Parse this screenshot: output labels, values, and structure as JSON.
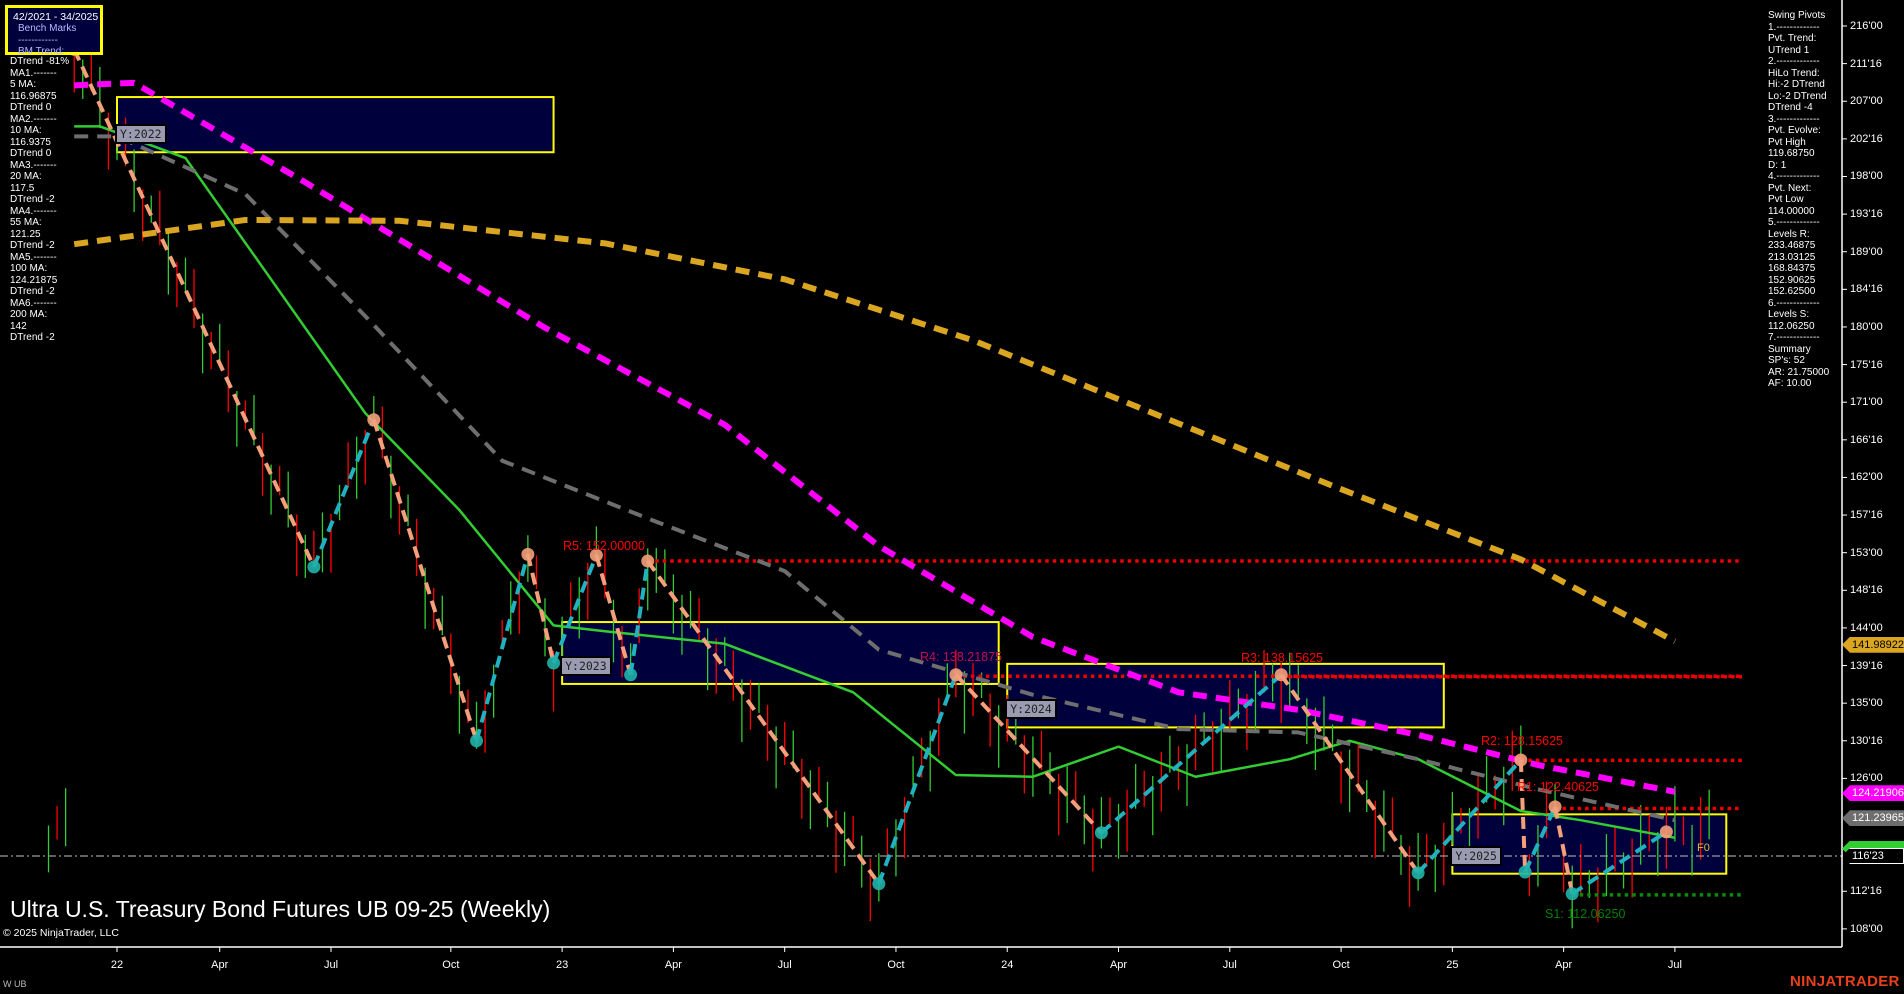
{
  "window": {
    "title": "Ultra U.S. Treasury Bond Futures UB 09-25 (Weekly)",
    "copyright": "© 2025 NinjaTrader, LLC",
    "instrument_tag": "W UB",
    "logo": "NINJATRADER"
  },
  "bench_box": {
    "range": "42/2021 - 34/2025",
    "lines": [
      "Bench Marks",
      "------------",
      "BM Trend:"
    ]
  },
  "left_panel": [
    "DTrend -81%",
    "MA1.-------",
    "5 MA:",
    "116.96875",
    "DTrend 0",
    "MA2.-------",
    "10 MA:",
    "116.9375",
    "DTrend 0",
    "MA3.-------",
    "20 MA:",
    "117.5",
    "DTrend -2",
    "MA4.-------",
    "55 MA:",
    "121.25",
    "DTrend -2",
    "MA5.-------",
    "100 MA:",
    "124.21875",
    "DTrend -2",
    "MA6.-------",
    "200 MA:",
    "142",
    "DTrend -2"
  ],
  "right_panel": [
    "Swing Pivots",
    "1.-------------",
    "Pvt. Trend:",
    "UTrend 1",
    "2.-------------",
    "HiLo Trend:",
    "Hi:-2 DTrend",
    "Lo:-2 DTrend",
    "DTrend -4",
    "3.-------------",
    "Pvt. Evolve:",
    "Pvt High",
    "119.68750",
    "D: 1",
    "4.-------------",
    "Pvt. Next:",
    "Pvt Low",
    "114.00000",
    "5.-------------",
    "Levels R:",
    "233.46875",
    "213.03125",
    "168.84375",
    "152.90625",
    "152.62500",
    "6.-------------",
    "Levels S:",
    "112.06250",
    "7.-------------",
    "Summary",
    "SP's: 52",
    "AR: 21.75000",
    "AF: 10.00"
  ],
  "chart_data": {
    "type": "line",
    "title": "Ultra U.S. Treasury Bond Futures UB 09-25 (Weekly)",
    "x_axis": {
      "start": "42/2021",
      "end": "34/2025",
      "ticks": [
        {
          "label": "22",
          "week": 11
        },
        {
          "label": "Apr",
          "week": 23
        },
        {
          "label": "Jul",
          "week": 36
        },
        {
          "label": "Oct",
          "week": 50
        },
        {
          "label": "23",
          "week": 63
        },
        {
          "label": "Apr",
          "week": 76
        },
        {
          "label": "Jul",
          "week": 89
        },
        {
          "label": "Oct",
          "week": 102
        },
        {
          "label": "24",
          "week": 115
        },
        {
          "label": "Apr",
          "week": 128
        },
        {
          "label": "Jul",
          "week": 141
        },
        {
          "label": "Oct",
          "week": 154
        },
        {
          "label": "25",
          "week": 167
        },
        {
          "label": "Apr",
          "week": 180
        },
        {
          "label": "Jul",
          "week": 193
        }
      ]
    },
    "y_axis": {
      "range": [
        104,
        219
      ],
      "ticks": [
        {
          "label": "216'00",
          "value": 216
        },
        {
          "label": "211'16",
          "value": 211.5
        },
        {
          "label": "207'00",
          "value": 207
        },
        {
          "label": "202'16",
          "value": 202.5
        },
        {
          "label": "198'00",
          "value": 198
        },
        {
          "label": "193'16",
          "value": 193.5
        },
        {
          "label": "189'00",
          "value": 189
        },
        {
          "label": "184'16",
          "value": 184.5
        },
        {
          "label": "180'00",
          "value": 180
        },
        {
          "label": "175'16",
          "value": 175.5
        },
        {
          "label": "171'00",
          "value": 171
        },
        {
          "label": "166'16",
          "value": 166.5
        },
        {
          "label": "162'00",
          "value": 162
        },
        {
          "label": "157'16",
          "value": 157.5
        },
        {
          "label": "153'00",
          "value": 153
        },
        {
          "label": "148'16",
          "value": 148.5
        },
        {
          "label": "144'00",
          "value": 144
        },
        {
          "label": "139'16",
          "value": 139.5
        },
        {
          "label": "135'00",
          "value": 135
        },
        {
          "label": "130'16",
          "value": 130.5
        },
        {
          "label": "126'00",
          "value": 126
        },
        {
          "label": "112'16",
          "value": 112.5
        },
        {
          "label": "108'00",
          "value": 108
        }
      ]
    },
    "price_markers": [
      {
        "label": "141.98922",
        "value": 141.98922,
        "color": "#daa520",
        "text_color": "#000000"
      },
      {
        "label": "124.21906",
        "value": 124.21906,
        "color": "#ff00ff",
        "text_color": "#ffffff"
      },
      {
        "label": "121.23965",
        "value": 121.23965,
        "color": "#6e6e6e",
        "text_color": "#ffffff"
      },
      {
        "label": "",
        "value": 117.6,
        "color": "#32cd32",
        "text_color": "#ffffff"
      },
      {
        "label": "116'23",
        "value": 116.71875,
        "color": "#000000",
        "text_color": "#ffffff"
      }
    ],
    "current_price": 116.71875,
    "series": [
      {
        "name": "20 MA",
        "color": "#32cd32",
        "style": "solid",
        "points": [
          [
            6,
            204
          ],
          [
            9,
            204
          ],
          [
            19,
            200.2
          ],
          [
            27,
            188.6
          ],
          [
            40,
            169.7
          ],
          [
            51,
            158.1
          ],
          [
            62,
            144.3
          ],
          [
            68,
            143.6
          ],
          [
            82,
            142.1
          ],
          [
            97,
            136.3
          ],
          [
            109,
            126.4
          ],
          [
            118,
            126.2
          ],
          [
            128,
            129.8
          ],
          [
            137,
            126.2
          ],
          [
            148,
            128.3
          ],
          [
            155,
            130.5
          ],
          [
            163,
            128.3
          ],
          [
            175,
            122.1
          ],
          [
            182,
            121
          ],
          [
            193,
            118.9
          ]
        ]
      },
      {
        "name": "55 MA",
        "color": "#6e6e6e",
        "style": "dashed",
        "points": [
          [
            6,
            202.8
          ],
          [
            11,
            202.8
          ],
          [
            26,
            195.9
          ],
          [
            40,
            181.3
          ],
          [
            56,
            164
          ],
          [
            74,
            156.7
          ],
          [
            89,
            150.8
          ],
          [
            100,
            141.4
          ],
          [
            118,
            136
          ],
          [
            135,
            131.9
          ],
          [
            149,
            131.5
          ],
          [
            163,
            128.3
          ],
          [
            177,
            124.7
          ],
          [
            193,
            121
          ]
        ]
      },
      {
        "name": "100 MA",
        "color": "#ff00ff",
        "style": "dashed",
        "points": [
          [
            6,
            208.9
          ],
          [
            13,
            209.2
          ],
          [
            33,
            197.3
          ],
          [
            61,
            179.9
          ],
          [
            82,
            168.3
          ],
          [
            100,
            153.8
          ],
          [
            118,
            142.9
          ],
          [
            135,
            136.3
          ],
          [
            149,
            134.2
          ],
          [
            163,
            131.2
          ],
          [
            177,
            127.6
          ],
          [
            193,
            124.4
          ]
        ]
      },
      {
        "name": "200 MA",
        "color": "#daa520",
        "style": "dashed",
        "points": [
          [
            6,
            189.9
          ],
          [
            26,
            192.8
          ],
          [
            44,
            192.7
          ],
          [
            68,
            190
          ],
          [
            89,
            185.7
          ],
          [
            111,
            178.4
          ],
          [
            132,
            169.7
          ],
          [
            153,
            161
          ],
          [
            175,
            152.2
          ],
          [
            193,
            142.4
          ]
        ]
      }
    ],
    "swing_pivots": [
      {
        "week": 6,
        "price": 213.2,
        "type": "high"
      },
      {
        "week": 34,
        "price": 151.3,
        "type": "low"
      },
      {
        "week": 41,
        "price": 168.9,
        "type": "high"
      },
      {
        "week": 53,
        "price": 130.5,
        "type": "low"
      },
      {
        "week": 59,
        "price": 152.8,
        "type": "high"
      },
      {
        "week": 62,
        "price": 139.8,
        "type": "low"
      },
      {
        "week": 67,
        "price": 152.7,
        "type": "high"
      },
      {
        "week": 71,
        "price": 138.4,
        "type": "low"
      },
      {
        "week": 73,
        "price": 152.0,
        "type": "high"
      },
      {
        "week": 100,
        "price": 113.4,
        "type": "low"
      },
      {
        "week": 109,
        "price": 138.4,
        "type": "high"
      },
      {
        "week": 126,
        "price": 119.5,
        "type": "low"
      },
      {
        "week": 147,
        "price": 138.4,
        "type": "high"
      },
      {
        "week": 163,
        "price": 114.7,
        "type": "low"
      },
      {
        "week": 175,
        "price": 128.2,
        "type": "high"
      },
      {
        "week": 175.5,
        "price": 114.8,
        "type": "low"
      },
      {
        "week": 179,
        "price": 122.6,
        "type": "high"
      },
      {
        "week": 181,
        "price": 112.2,
        "type": "low"
      },
      {
        "week": 192,
        "price": 119.6,
        "type": "high"
      }
    ],
    "levels": [
      {
        "label": "R5: 152.00000",
        "value": 152.0,
        "from_week": 73,
        "color": "#ff0000"
      },
      {
        "label": "R4: 138.21875",
        "value": 138.21875,
        "from_week": 109,
        "color": "#c0104a"
      },
      {
        "label": "R3: 138.15625",
        "value": 138.15625,
        "from_week": 147,
        "color": "#ff0000"
      },
      {
        "label": "R2: 128.15625",
        "value": 128.15625,
        "from_week": 175,
        "color": "#ff0000"
      },
      {
        "label": "R1: 122.40625",
        "value": 122.40625,
        "from_week": 179,
        "color": "#ff0000"
      },
      {
        "label": "S1: 112.06250",
        "value": 112.0625,
        "from_week": 181,
        "color": "#008000"
      }
    ],
    "year_boxes": [
      {
        "label": "Y:2022",
        "from_week": 11,
        "to_week": 62,
        "high": 207.5,
        "low": 200.9
      },
      {
        "label": "Y:2023",
        "from_week": 63,
        "to_week": 114,
        "high": 144.7,
        "low": 137.3
      },
      {
        "label": "Y:2024",
        "from_week": 115,
        "to_week": 166,
        "high": 139.7,
        "low": 132.1
      },
      {
        "label": "Y:2025",
        "from_week": 167,
        "to_week": 199,
        "high": 121.7,
        "low": 114.6
      }
    ],
    "f0_label": "F0",
    "grid": false
  },
  "colors": {
    "background": "#000000",
    "year_box_fill": "#00003c",
    "year_box_border": "#ffff00",
    "pivot_high": "#f4a07a",
    "pivot_low": "#20b2aa",
    "up_bar": "#32cd32",
    "down_bar": "#ff0000"
  }
}
